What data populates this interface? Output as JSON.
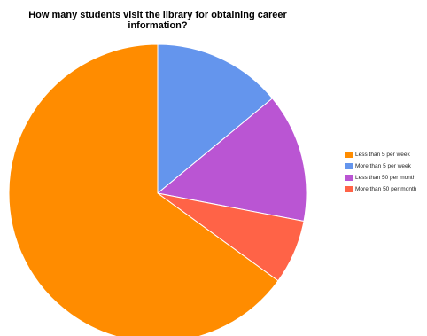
{
  "chart_data": {
    "type": "pie",
    "title_line1": "How many students visit the library for obtaining career",
    "title_line2": "information?",
    "slices": [
      {
        "label": "More than 5 per week",
        "value": 14,
        "color": "#6495ed"
      },
      {
        "label": "Less than 50 per month",
        "value": 14,
        "color": "#ba55d3"
      },
      {
        "label": "More than 50 per month",
        "value": 7,
        "color": "#ff6347"
      },
      {
        "label": "Less than 5 per week",
        "value": 65,
        "color": "#ff8c00"
      }
    ],
    "legend": [
      {
        "label": "Less than 5 per week",
        "color": "#ff8c00"
      },
      {
        "label": "More than 5 per week",
        "color": "#6495ed"
      },
      {
        "label": "Less than 50 per month",
        "color": "#ba55d3"
      },
      {
        "label": "More than 50 per month",
        "color": "#ff6347"
      }
    ],
    "legend_position": "right"
  }
}
